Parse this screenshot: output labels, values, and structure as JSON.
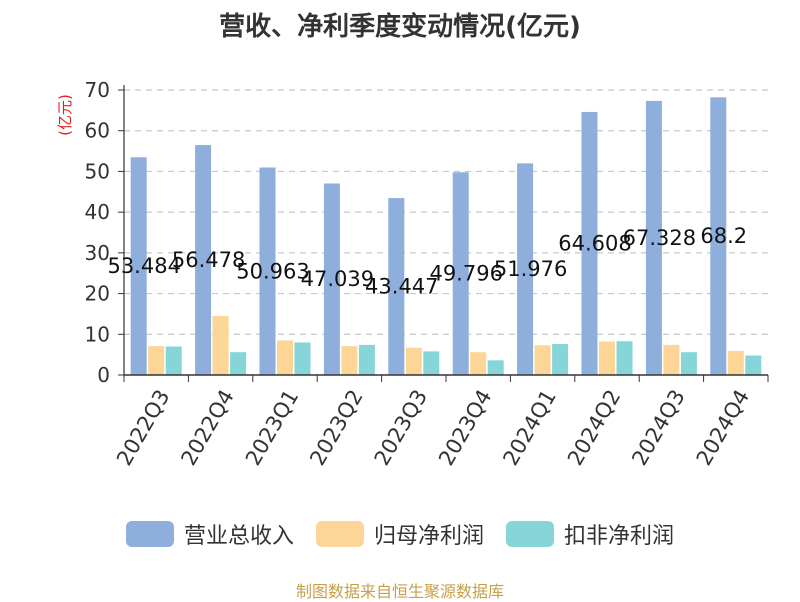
{
  "chart_data": {
    "type": "bar",
    "title": "营收、净利季度变动情况(亿元)",
    "ylabel": "(亿元)",
    "ylabel_color": "#e02020",
    "ylim": [
      0,
      70
    ],
    "yticks": [
      0,
      10,
      20,
      30,
      40,
      50,
      60,
      70
    ],
    "grid": "horizontal-dashed",
    "legend_position": "bottom",
    "categories": [
      "2022Q3",
      "2022Q4",
      "2023Q1",
      "2023Q2",
      "2023Q3",
      "2023Q4",
      "2024Q1",
      "2024Q2",
      "2024Q3",
      "2024Q4"
    ],
    "series": [
      {
        "name": "营业总收入",
        "color": "#8eaedb",
        "values": [
          53.484,
          56.478,
          50.963,
          47.039,
          43.447,
          49.796,
          51.976,
          64.608,
          67.328,
          68.2
        ],
        "labels": [
          "53.484",
          "56.478",
          "50.963",
          "47.039",
          "43.447",
          "49.796",
          "51.976",
          "64.608",
          "67.328",
          "68.2"
        ]
      },
      {
        "name": "归母净利润",
        "color": "#fdd596",
        "values": [
          7.1,
          14.5,
          8.5,
          7.1,
          6.7,
          5.6,
          7.3,
          8.2,
          7.4,
          5.9
        ]
      },
      {
        "name": "扣非净利润",
        "color": "#86d5d8",
        "values": [
          7.0,
          5.6,
          8.0,
          7.4,
          5.8,
          3.6,
          7.6,
          8.3,
          5.6,
          4.8
        ]
      }
    ]
  },
  "source_note": "制图数据来自恒生聚源数据库"
}
